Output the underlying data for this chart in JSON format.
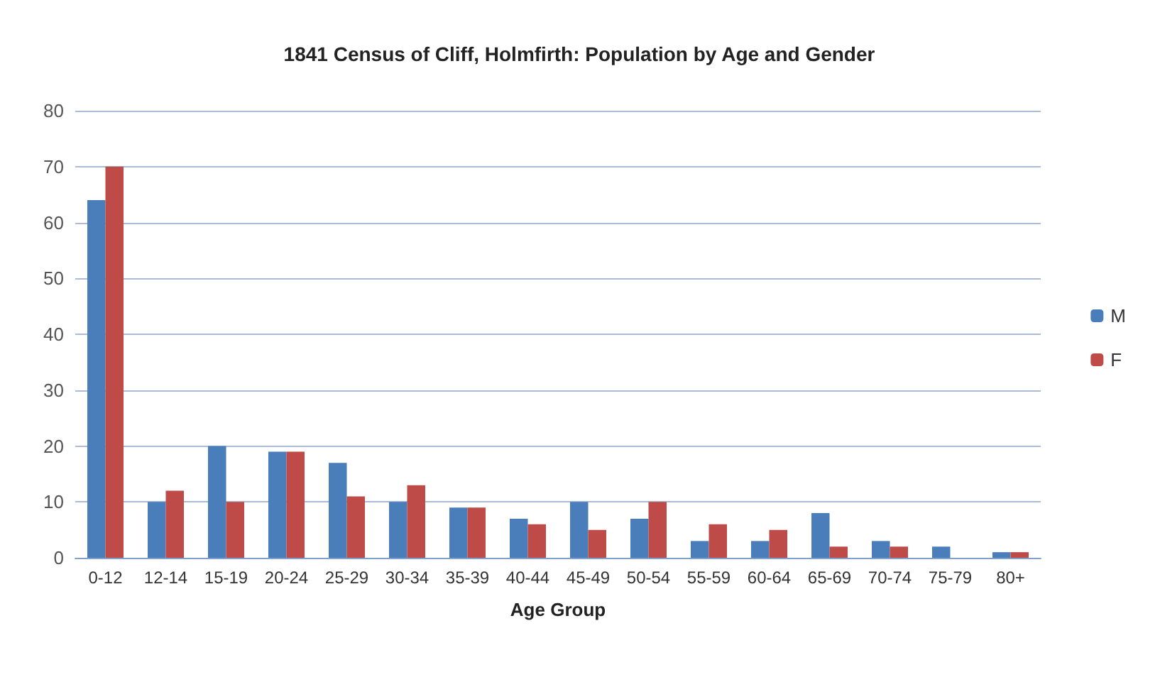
{
  "chart_data": {
    "type": "bar",
    "title": "1841 Census of Cliff, Holmfirth: Population by Age and Gender",
    "xlabel": "Age Group",
    "categories": [
      "0-12",
      "12-14",
      "15-19",
      "20-24",
      "25-29",
      "30-34",
      "35-39",
      "40-44",
      "45-49",
      "50-54",
      "55-59",
      "60-64",
      "65-69",
      "70-74",
      "75-79",
      "80+"
    ],
    "series": [
      {
        "name": "M",
        "color": "#4a7ebb",
        "values": [
          64,
          10,
          20,
          19,
          17,
          10,
          9,
          7,
          10,
          7,
          3,
          3,
          8,
          3,
          2,
          1
        ]
      },
      {
        "name": "F",
        "color": "#be4b48",
        "values": [
          70,
          12,
          10,
          19,
          11,
          13,
          9,
          6,
          5,
          10,
          6,
          5,
          2,
          2,
          0,
          1
        ]
      }
    ],
    "ylim": [
      0,
      80
    ],
    "yticks": [
      0,
      10,
      20,
      30,
      40,
      50,
      60,
      70,
      80
    ],
    "grid": "y",
    "legend": "right"
  }
}
